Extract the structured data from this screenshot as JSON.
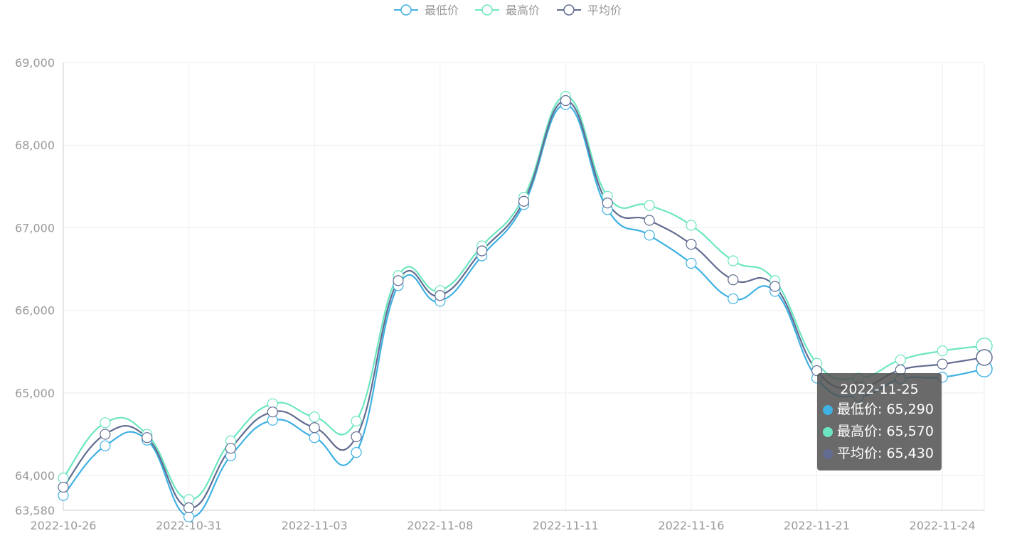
{
  "chart_data": {
    "type": "line",
    "smooth": true,
    "x": [
      "2022-10-26",
      "2022-10-27",
      "2022-10-28",
      "2022-10-31",
      "2022-11-01",
      "2022-11-02",
      "2022-11-03",
      "2022-11-04",
      "2022-11-07",
      "2022-11-08",
      "2022-11-09",
      "2022-11-10",
      "2022-11-11",
      "2022-11-14",
      "2022-11-15",
      "2022-11-16",
      "2022-11-17",
      "2022-11-18",
      "2022-11-21",
      "2022-11-22",
      "2022-11-23",
      "2022-11-24",
      "2022-11-25"
    ],
    "x_tick_labels": [
      "2022-10-26",
      "2022-10-31",
      "2022-11-03",
      "2022-11-08",
      "2022-11-11",
      "2022-11-16",
      "2022-11-21",
      "2022-11-24"
    ],
    "y_tick_labels": [
      "63,580",
      "64,000",
      "65,000",
      "66,000",
      "67,000",
      "68,000",
      "69,000"
    ],
    "ylim": [
      63580,
      69000
    ],
    "grid": true,
    "legend_position": "top-center",
    "series": [
      {
        "name": "最低价",
        "color": "#3fb1e3",
        "values": [
          63760,
          64360,
          64430,
          63500,
          64240,
          64670,
          64460,
          64280,
          66300,
          66110,
          66660,
          67280,
          68490,
          67220,
          66910,
          66570,
          66140,
          66230,
          65180,
          64960,
          65170,
          65190,
          65290
        ]
      },
      {
        "name": "最高价",
        "color": "#6be6c1",
        "values": [
          63970,
          64640,
          64500,
          63710,
          64420,
          64870,
          64710,
          64660,
          66420,
          66240,
          66780,
          67370,
          68590,
          67380,
          67270,
          67030,
          66600,
          66360,
          65360,
          65180,
          65400,
          65510,
          65570
        ]
      },
      {
        "name": "平均价",
        "color": "#626c91",
        "values": [
          63860,
          64500,
          64460,
          63610,
          64330,
          64770,
          64580,
          64470,
          66360,
          66180,
          66720,
          67320,
          68540,
          67300,
          67090,
          66800,
          66370,
          66290,
          65270,
          65070,
          65280,
          65350,
          65430
        ]
      }
    ],
    "tooltip": {
      "date": "2022-11-25",
      "rows": [
        {
          "label": "最低价: 65,290",
          "color": "#3fb1e3"
        },
        {
          "label": "最高价: 65,570",
          "color": "#6be6c1"
        },
        {
          "label": "平均价: 65,430",
          "color": "#626c91"
        }
      ]
    }
  }
}
